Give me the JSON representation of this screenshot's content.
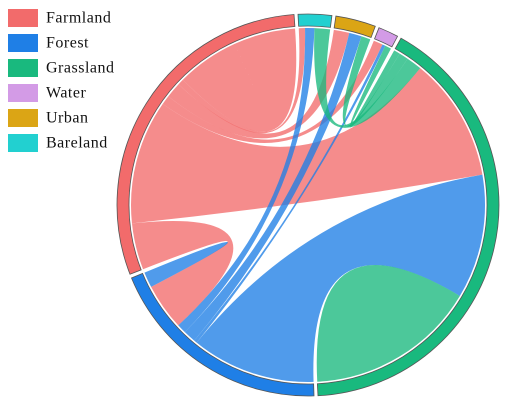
{
  "chart_data": {
    "type": "chord",
    "series": [
      {
        "name": "Farmland",
        "color": "#f26b6b"
      },
      {
        "name": "Forest",
        "color": "#1f7fe6"
      },
      {
        "name": "Grassland",
        "color": "#19b97e"
      },
      {
        "name": "Water",
        "color": "#d39be6"
      },
      {
        "name": "Urban",
        "color": "#dba515"
      },
      {
        "name": "Bareland",
        "color": "#22d0d0"
      }
    ],
    "matrix": [
      [
        40,
        15,
        40,
        3,
        5,
        2
      ],
      [
        15,
        5,
        40,
        1,
        4,
        3
      ],
      [
        40,
        40,
        55,
        2,
        3,
        5
      ],
      [
        3,
        1,
        2,
        0,
        0,
        0
      ],
      [
        5,
        4,
        3,
        0,
        0,
        0
      ],
      [
        2,
        3,
        5,
        0,
        0,
        0
      ]
    ]
  }
}
